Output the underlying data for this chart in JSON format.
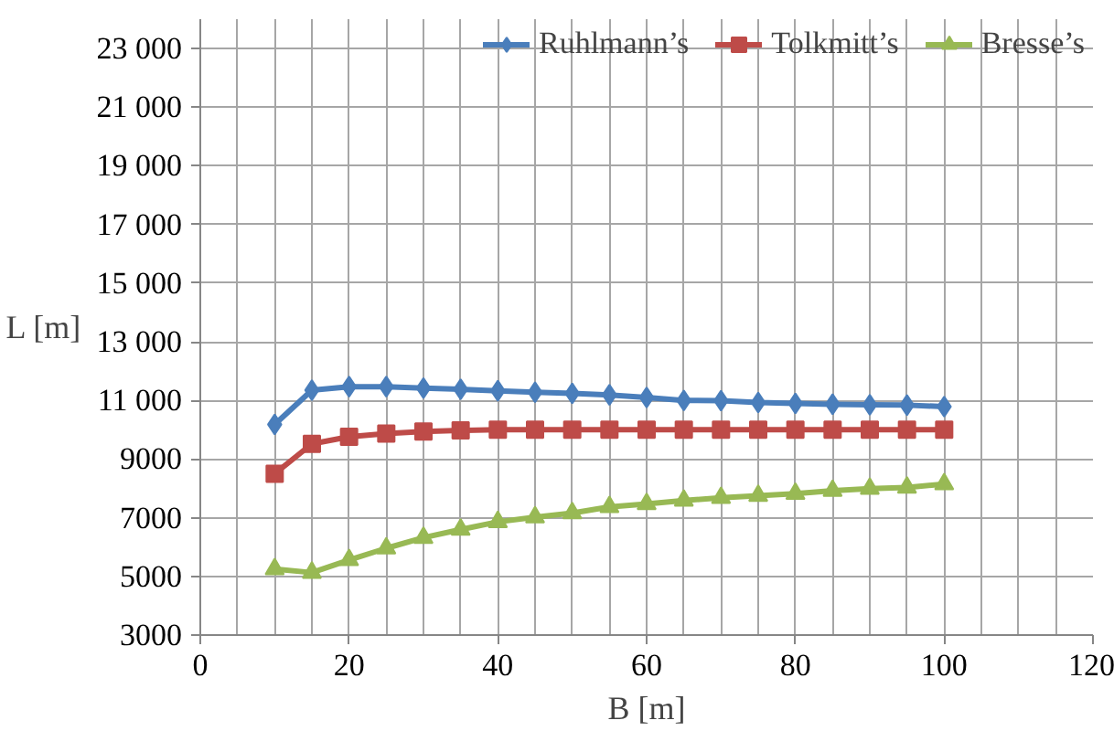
{
  "chart_data": {
    "type": "line",
    "xlabel": "B [m]",
    "ylabel": "L [m]",
    "x": [
      10,
      15,
      20,
      25,
      30,
      35,
      40,
      45,
      50,
      55,
      60,
      65,
      70,
      75,
      80,
      85,
      90,
      95,
      100
    ],
    "series": [
      {
        "name": "Ruhlmann’s",
        "color": "#4a7ebb",
        "marker": "diamond",
        "values": [
          10180,
          11350,
          11470,
          11470,
          11420,
          11380,
          11330,
          11280,
          11240,
          11190,
          11100,
          11000,
          10990,
          10930,
          10900,
          10870,
          10850,
          10840,
          10790
        ]
      },
      {
        "name": "Tolkmitt’s",
        "color": "#be4b48",
        "marker": "square",
        "values": [
          8500,
          9520,
          9760,
          9870,
          9940,
          9980,
          10000,
          10000,
          10000,
          10000,
          10000,
          10000,
          10000,
          10000,
          10000,
          10000,
          10000,
          10000,
          10000
        ]
      },
      {
        "name": "Bresse’s",
        "color": "#98b954",
        "marker": "triangle",
        "values": [
          5250,
          5130,
          5560,
          5960,
          6320,
          6600,
          6860,
          7020,
          7160,
          7370,
          7470,
          7590,
          7680,
          7750,
          7820,
          7920,
          7990,
          8030,
          8150
        ]
      }
    ],
    "xlim": [
      0,
      120
    ],
    "xticks": [
      0,
      20,
      40,
      60,
      80,
      100,
      120
    ],
    "ylim": [
      3000,
      24000
    ],
    "yticks": [
      3000,
      5000,
      7000,
      9000,
      {
        "value": 11000,
        "label": "11 000"
      },
      {
        "value": 13000,
        "label": "13 000"
      },
      {
        "value": 15000,
        "label": "15 000"
      },
      {
        "value": 17000,
        "label": "17 000"
      },
      {
        "value": 19000,
        "label": "19 000"
      },
      {
        "value": 21000,
        "label": "21 000"
      },
      {
        "value": 23000,
        "label": "23 000"
      }
    ],
    "grid": true,
    "legend": "top",
    "line_style": "solid"
  }
}
